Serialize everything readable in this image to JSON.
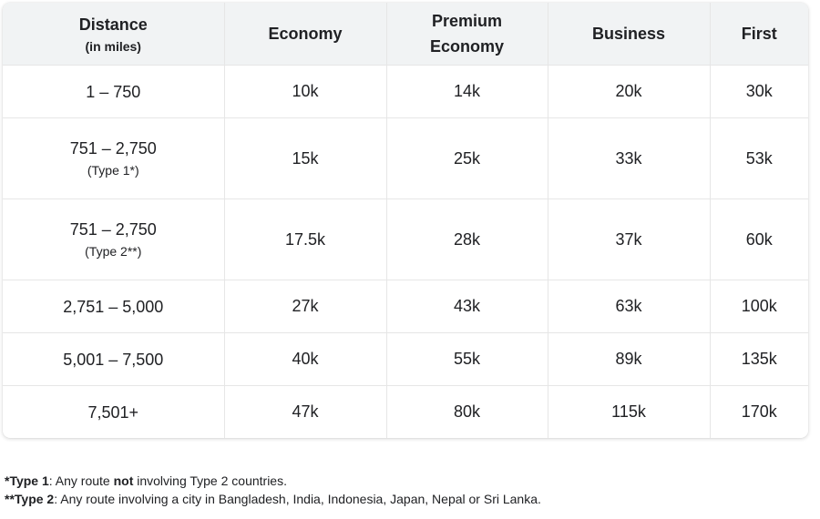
{
  "table": {
    "headers": {
      "distance": "Distance",
      "distance_unit": "(in miles)",
      "economy": "Economy",
      "premium_line1": "Premium",
      "premium_line2": "Economy",
      "business": "Business",
      "first": "First"
    },
    "rows": [
      {
        "distance": "1 – 750",
        "note": "",
        "economy": "10k",
        "premium": "14k",
        "business": "20k",
        "first": "30k"
      },
      {
        "distance": "751 – 2,750",
        "note": "(Type 1*)",
        "economy": "15k",
        "premium": "25k",
        "business": "33k",
        "first": "53k"
      },
      {
        "distance": "751 – 2,750",
        "note": "(Type 2**)",
        "economy": "17.5k",
        "premium": "28k",
        "business": "37k",
        "first": "60k"
      },
      {
        "distance": "2,751 – 5,000",
        "note": "",
        "economy": "27k",
        "premium": "43k",
        "business": "63k",
        "first": "100k"
      },
      {
        "distance": "5,001 – 7,500",
        "note": "",
        "economy": "40k",
        "premium": "55k",
        "business": "89k",
        "first": "135k"
      },
      {
        "distance": "7,501+",
        "note": "",
        "economy": "47k",
        "premium": "80k",
        "business": "115k",
        "first": "170k"
      }
    ]
  },
  "footnotes": {
    "type1_marker": "*Type 1",
    "type1_text_a": ": Any route ",
    "type1_not": "not",
    "type1_text_b": " involving Type 2 countries.",
    "type2_marker": "**Type 2",
    "type2_text": ": Any route involving a city in Bangladesh, India, Indonesia, Japan, Nepal or Sri Lanka."
  }
}
